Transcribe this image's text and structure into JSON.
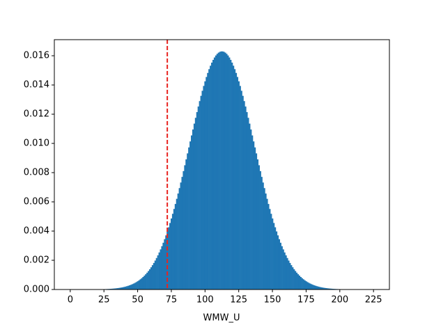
{
  "chart_data": {
    "type": "bar",
    "xlabel": "WMW_U",
    "color": "#1f77b4",
    "vline": 72,
    "vline_color": "#e8231f",
    "xlim": [
      -11.8,
      236.8
    ],
    "ylim": [
      0,
      0.0171
    ],
    "xticks": [
      0,
      25,
      50,
      75,
      100,
      125,
      150,
      175,
      200,
      225
    ],
    "yticks": [
      {
        "value": 0,
        "label": "0.000"
      },
      0.002,
      0.004,
      0.006,
      0.008,
      {
        "value": 0.01,
        "label": "0.010"
      },
      0.012,
      0.014,
      0.016
    ],
    "x": [
      0,
      1,
      2,
      3,
      4,
      5,
      6,
      7,
      8,
      9,
      10,
      11,
      12,
      13,
      14,
      15,
      16,
      17,
      18,
      19,
      20,
      21,
      22,
      23,
      24,
      25,
      26,
      27,
      28,
      29,
      30,
      31,
      32,
      33,
      34,
      35,
      36,
      37,
      38,
      39,
      40,
      41,
      42,
      43,
      44,
      45,
      46,
      47,
      48,
      49,
      50,
      51,
      52,
      53,
      54,
      55,
      56,
      57,
      58,
      59,
      60,
      61,
      62,
      63,
      64,
      65,
      66,
      67,
      68,
      69,
      70,
      71,
      72,
      73,
      74,
      75,
      76,
      77,
      78,
      79,
      80,
      81,
      82,
      83,
      84,
      85,
      86,
      87,
      88,
      89,
      90,
      91,
      92,
      93,
      94,
      95,
      96,
      97,
      98,
      99,
      100,
      101,
      102,
      103,
      104,
      105,
      106,
      107,
      108,
      109,
      110,
      111,
      112,
      113,
      114,
      115,
      116,
      117,
      118,
      119,
      120,
      121,
      122,
      123,
      124,
      125,
      126,
      127,
      128,
      129,
      130,
      131,
      132,
      133,
      134,
      135,
      136,
      137,
      138,
      139,
      140,
      141,
      142,
      143,
      144,
      145,
      146,
      147,
      148,
      149,
      150,
      151,
      152,
      153,
      154,
      155,
      156,
      157,
      158,
      159,
      160,
      161,
      162,
      163,
      164,
      165,
      166,
      167,
      168,
      169,
      170,
      171,
      172,
      173,
      174,
      175,
      176,
      177,
      178,
      179,
      180,
      181,
      182,
      183,
      184,
      185,
      186,
      187,
      188,
      189,
      190,
      191,
      192,
      193,
      194,
      195,
      196,
      197,
      198,
      199,
      200,
      201,
      202,
      203,
      204,
      205,
      206,
      207,
      208,
      209,
      210,
      211,
      212,
      213,
      214,
      215,
      216,
      217,
      218,
      219,
      220,
      221,
      222,
      223,
      224,
      225
    ],
    "values": [
      0,
      0,
      0,
      0,
      0,
      0,
      0,
      1e-06,
      1e-06,
      1e-06,
      2e-06,
      2e-06,
      2e-06,
      3e-06,
      4e-06,
      4e-06,
      5e-06,
      6e-06,
      7e-06,
      9e-06,
      1e-05,
      1.2e-05,
      1.4e-05,
      1.7e-05,
      1.9e-05,
      2.2e-05,
      2.6e-05,
      3e-05,
      3.5e-05,
      4.1e-05,
      4.7e-05,
      5.4e-05,
      6.2e-05,
      7.1e-05,
      8.1e-05,
      9.3e-05,
      0.000106,
      0.000121,
      0.000138,
      0.000156,
      0.000177,
      0.0002,
      0.000227,
      0.000256,
      0.000288,
      0.000324,
      0.000363,
      0.000407,
      0.000455,
      0.000508,
      0.000566,
      0.00063,
      0.0007,
      0.000776,
      0.000859,
      0.000949,
      0.001046,
      0.001152,
      0.001266,
      0.00139,
      0.001522,
      0.001665,
      0.001817,
      0.001981,
      0.002155,
      0.00234,
      0.002537,
      0.002746,
      0.002967,
      0.003201,
      0.003446,
      0.003705,
      0.003976,
      0.004259,
      0.004554,
      0.004862,
      0.005182,
      0.005513,
      0.005855,
      0.006208,
      0.00657,
      0.006942,
      0.007323,
      0.00771,
      0.008105,
      0.008505,
      0.008909,
      0.009317,
      0.009726,
      0.010136,
      0.010546,
      0.010952,
      0.011355,
      0.011752,
      0.012143,
      0.012525,
      0.012897,
      0.013257,
      0.013603,
      0.013935,
      0.01425,
      0.014547,
      0.014825,
      0.015083,
      0.015318,
      0.01553,
      0.015718,
      0.015881,
      0.016019,
      0.016129,
      0.016213,
      0.016269,
      0.016296,
      0.016296,
      0.016269,
      0.016213,
      0.016129,
      0.016019,
      0.015881,
      0.015718,
      0.01553,
      0.015318,
      0.015083,
      0.014825,
      0.014547,
      0.01425,
      0.013935,
      0.013603,
      0.013257,
      0.012897,
      0.012525,
      0.012143,
      0.011752,
      0.011355,
      0.010952,
      0.010546,
      0.010136,
      0.009726,
      0.009317,
      0.008909,
      0.008505,
      0.008105,
      0.00771,
      0.007323,
      0.006942,
      0.00657,
      0.006208,
      0.005855,
      0.005513,
      0.005182,
      0.004862,
      0.004554,
      0.004259,
      0.003976,
      0.003705,
      0.003446,
      0.003201,
      0.002967,
      0.002746,
      0.002537,
      0.00234,
      0.002155,
      0.001981,
      0.001817,
      0.001665,
      0.001522,
      0.00139,
      0.001266,
      0.001152,
      0.001046,
      0.000949,
      0.000859,
      0.000776,
      0.0007,
      0.00063,
      0.000566,
      0.000508,
      0.000455,
      0.000407,
      0.000363,
      0.000324,
      0.000288,
      0.000256,
      0.000227,
      0.0002,
      0.000177,
      0.000156,
      0.000138,
      0.000121,
      0.000106,
      9.3e-05,
      8.1e-05,
      7.1e-05,
      6.2e-05,
      5.4e-05,
      4.7e-05,
      4.1e-05,
      3.5e-05,
      3e-05,
      2.6e-05,
      2.2e-05,
      1.9e-05,
      1.7e-05,
      1.4e-05,
      1.2e-05,
      1e-05,
      9e-06,
      7e-06,
      6e-06,
      5e-06,
      4e-06,
      4e-06,
      3e-06,
      2e-06,
      2e-06,
      2e-06,
      1e-06,
      1e-06,
      1e-06,
      0,
      0,
      0,
      0,
      0,
      0,
      0
    ]
  }
}
